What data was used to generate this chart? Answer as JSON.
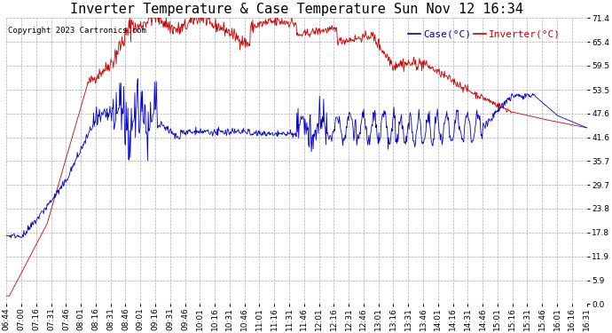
{
  "title": "Inverter Temperature & Case Temperature Sun Nov 12 16:34",
  "copyright": "Copyright 2023 Cartronics.com",
  "legend_case": "Case(°C)",
  "legend_inverter": "Inverter(°C)",
  "yticks": [
    0.0,
    5.9,
    11.9,
    17.8,
    23.8,
    29.7,
    35.7,
    41.6,
    47.6,
    53.5,
    59.5,
    65.4,
    71.4
  ],
  "ymin": 0.0,
  "ymax": 71.4,
  "case_color": "#0000cc",
  "inverter_color": "#cc0000",
  "background_color": "#ffffff",
  "grid_color": "#aaaaaa",
  "xtick_labels": [
    "06:44",
    "07:00",
    "07:16",
    "07:31",
    "07:46",
    "08:01",
    "08:16",
    "08:31",
    "08:46",
    "09:01",
    "09:16",
    "09:31",
    "09:46",
    "10:01",
    "10:16",
    "10:31",
    "10:46",
    "11:01",
    "11:16",
    "11:31",
    "11:46",
    "12:01",
    "12:16",
    "12:31",
    "12:46",
    "13:01",
    "13:16",
    "13:31",
    "13:46",
    "14:01",
    "14:16",
    "14:31",
    "14:46",
    "15:01",
    "15:16",
    "15:31",
    "15:46",
    "16:01",
    "16:16",
    "16:31"
  ],
  "title_fontsize": 11,
  "tick_fontsize": 6.5,
  "legend_fontsize": 8,
  "copyright_fontsize": 6.5
}
